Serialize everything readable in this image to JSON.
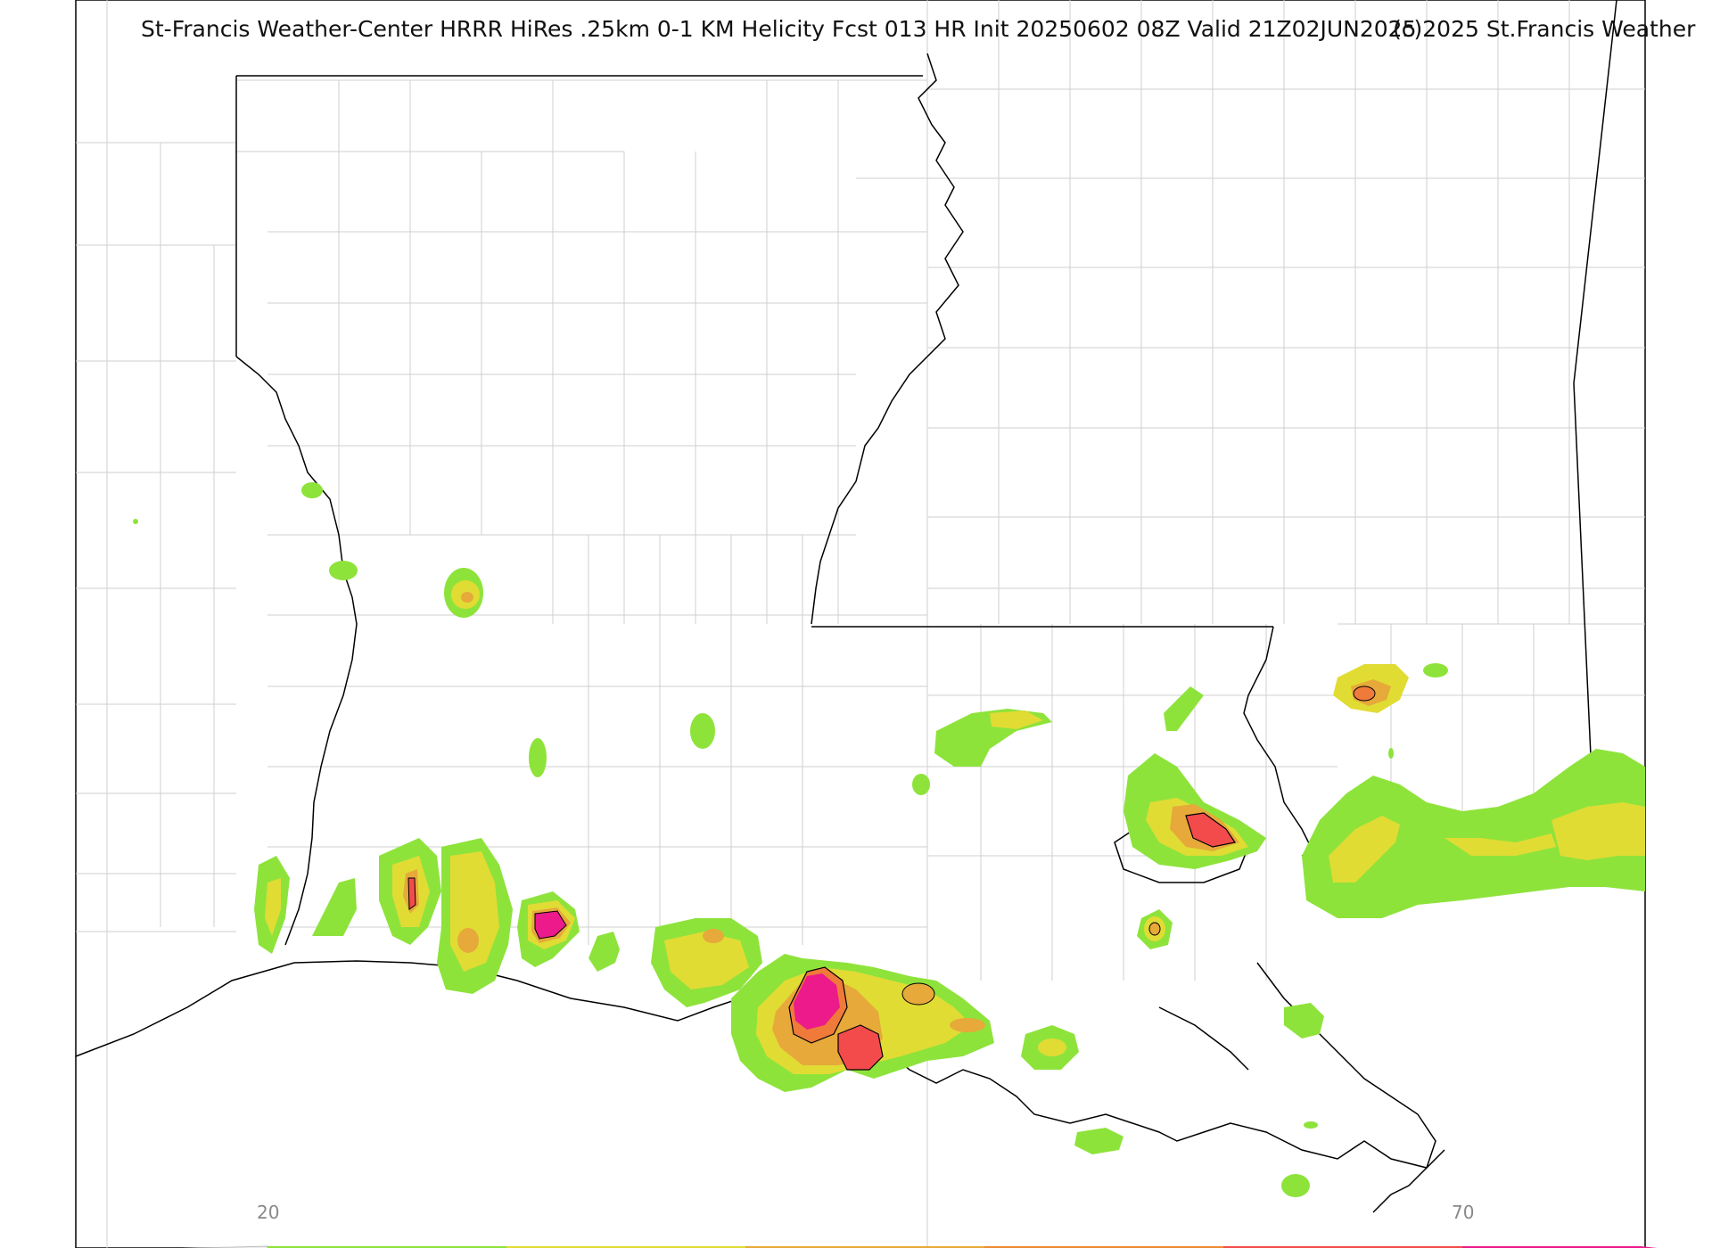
{
  "title": "St-Francis Weather-Center HRRR HiRes .25km 0-1 KM Helicity Fcst 013 HR Init 20250602 08Z  Valid 21Z02JUN2025",
  "copyright": "(c)2025 St.Francis Weather",
  "colorbar": {
    "min_label": "20",
    "max_label": "70",
    "colors": [
      "#8ee33b",
      "#e0dc34",
      "#e6a93a",
      "#ef8a32",
      "#f34b4b",
      "#ec1a8a"
    ]
  },
  "colors": {
    "outline": "#000000",
    "county": "#cccccc",
    "level_1": "#8ee33b",
    "level_2": "#e0dc34",
    "level_3": "#e6a93a",
    "level_4": "#ef7a3a",
    "level_5": "#f34b4b",
    "level_6": "#ec1a8a"
  }
}
